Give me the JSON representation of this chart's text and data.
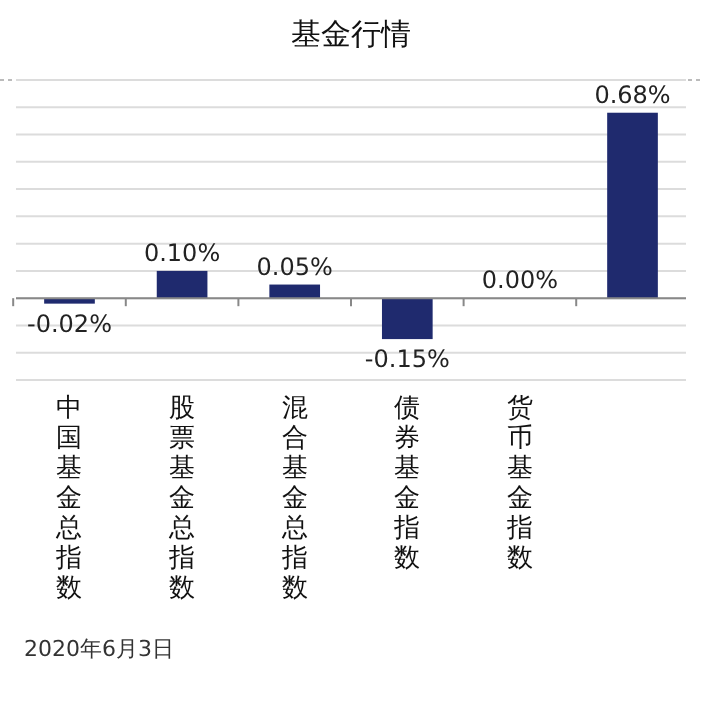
{
  "chart_data": {
    "type": "bar",
    "title": "基金行情",
    "categories": [
      "中国基金总指数",
      "股票基金总指数",
      "混合基金总指数",
      "债券基金指数",
      "货币基金指数",
      null
    ],
    "series": [
      {
        "color": "#1f2a6e",
        "values": [
          -0.02,
          0.1,
          0.05,
          -0.15,
          0.0,
          0.68
        ],
        "value_labels": [
          "-0.02%",
          "0.10%",
          "0.05%",
          "-0.15%",
          "0.00%",
          "0.68%"
        ]
      }
    ],
    "ylim": [
      -0.3,
      0.8
    ],
    "yticks": [
      {
        "value": -0.3,
        "label": null
      },
      {
        "value": -0.2,
        "label": null
      },
      {
        "value": -0.1,
        "label": null
      },
      {
        "value": 0,
        "label": null
      },
      {
        "value": 0.1,
        "label": null
      },
      {
        "value": 0.2,
        "label": null
      },
      {
        "value": 0.3,
        "label": null
      },
      {
        "value": 0.4,
        "label": null
      },
      {
        "value": 0.5,
        "label": null
      },
      {
        "value": 0.6,
        "label": null
      },
      {
        "value": 0.7,
        "label": null
      },
      {
        "value": 0.8,
        "label": null
      }
    ],
    "grid": "y",
    "tick_labels": "x",
    "annotations": [
      "2020年6月3日"
    ]
  }
}
